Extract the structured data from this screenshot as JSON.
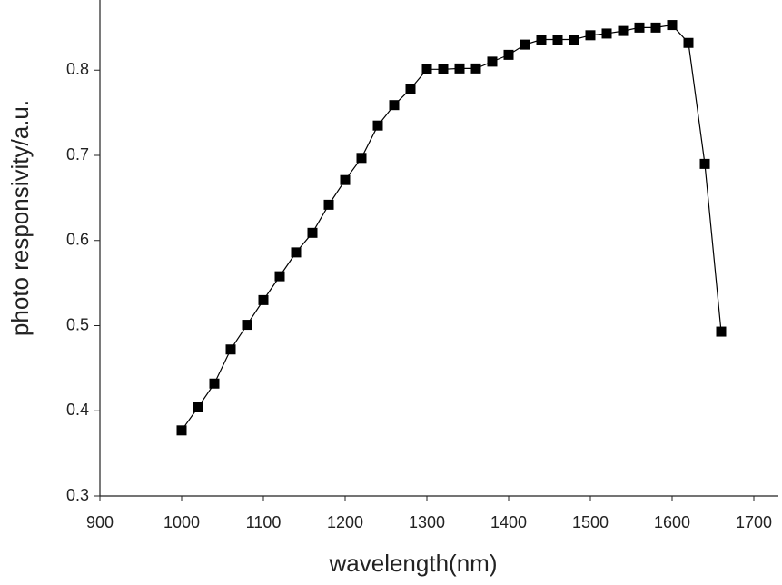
{
  "chart_data": {
    "type": "line",
    "x_label": "wavelength(nm)",
    "y_label": "photo responsivity/a.u.",
    "x": [
      1000,
      1020,
      1040,
      1060,
      1080,
      1100,
      1120,
      1140,
      1160,
      1180,
      1200,
      1220,
      1240,
      1260,
      1280,
      1300,
      1320,
      1340,
      1360,
      1380,
      1400,
      1420,
      1440,
      1460,
      1480,
      1500,
      1520,
      1540,
      1560,
      1580,
      1600,
      1620,
      1640,
      1660
    ],
    "series": [
      {
        "name": "responsivity",
        "color": "#000000",
        "values": [
          0.377,
          0.404,
          0.432,
          0.472,
          0.501,
          0.53,
          0.558,
          0.586,
          0.609,
          0.642,
          0.671,
          0.697,
          0.735,
          0.759,
          0.778,
          0.801,
          0.801,
          0.802,
          0.802,
          0.81,
          0.818,
          0.83,
          0.836,
          0.836,
          0.836,
          0.841,
          0.843,
          0.846,
          0.85,
          0.85,
          0.853,
          0.832,
          0.69,
          0.493
        ]
      }
    ],
    "xlim": [
      900,
      1730
    ],
    "ylim": [
      0.3,
      0.88
    ],
    "xticks": [
      900,
      1000,
      1100,
      1200,
      1300,
      1400,
      1500,
      1600,
      1700
    ],
    "yticks": [
      0.3,
      0.4,
      0.5,
      0.6,
      0.7,
      0.8
    ]
  }
}
